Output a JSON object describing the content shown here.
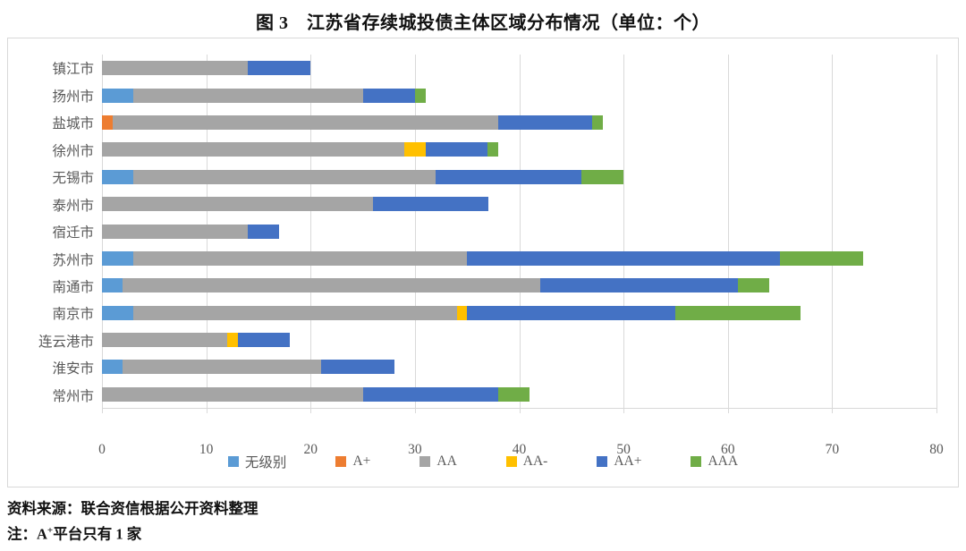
{
  "page": {
    "footer": {
      "source": "资料来源：联合资信根据公开资料整理",
      "note_prefix": "注：A",
      "note_sup": "+",
      "note_suffix": "平台只有 1 家"
    }
  },
  "chart_data": {
    "type": "bar",
    "orientation": "horizontal",
    "stacked": true,
    "title": "图 3　江苏省存续城投债主体区域分布情况（单位：个）",
    "categories": [
      "镇江市",
      "扬州市",
      "盐城市",
      "徐州市",
      "无锡市",
      "泰州市",
      "宿迁市",
      "苏州市",
      "南通市",
      "南京市",
      "连云港市",
      "淮安市",
      "常州市"
    ],
    "series": [
      {
        "name": "无级别",
        "color": "#5b9bd5",
        "values": [
          0,
          3,
          0,
          0,
          3,
          0,
          0,
          3,
          2,
          3,
          0,
          2,
          0
        ]
      },
      {
        "name": "A+",
        "color": "#ed7d31",
        "values": [
          0,
          0,
          1,
          0,
          0,
          0,
          0,
          0,
          0,
          0,
          0,
          0,
          0
        ]
      },
      {
        "name": "AA",
        "color": "#a5a5a5",
        "values": [
          14,
          22,
          37,
          29,
          29,
          26,
          14,
          32,
          40,
          31,
          12,
          19,
          25
        ]
      },
      {
        "name": "AA-",
        "color": "#ffc000",
        "values": [
          0,
          0,
          0,
          2,
          0,
          0,
          0,
          0,
          0,
          1,
          1,
          0,
          0
        ]
      },
      {
        "name": "AA+",
        "color": "#4472c4",
        "values": [
          6,
          5,
          9,
          6,
          14,
          11,
          3,
          30,
          19,
          20,
          5,
          7,
          13
        ]
      },
      {
        "name": "AAA",
        "color": "#70ad47",
        "values": [
          0,
          1,
          1,
          1,
          4,
          0,
          0,
          8,
          3,
          12,
          0,
          0,
          3
        ]
      }
    ],
    "totals": [
      20,
      31,
      48,
      38,
      50,
      37,
      17,
      73,
      64,
      67,
      18,
      28,
      41
    ],
    "x_axis": {
      "min": 0,
      "max": 80,
      "tick_step": 10,
      "ticks": [
        0,
        10,
        20,
        30,
        40,
        50,
        60,
        70,
        80
      ]
    },
    "grid": true,
    "legend_position": "bottom"
  }
}
